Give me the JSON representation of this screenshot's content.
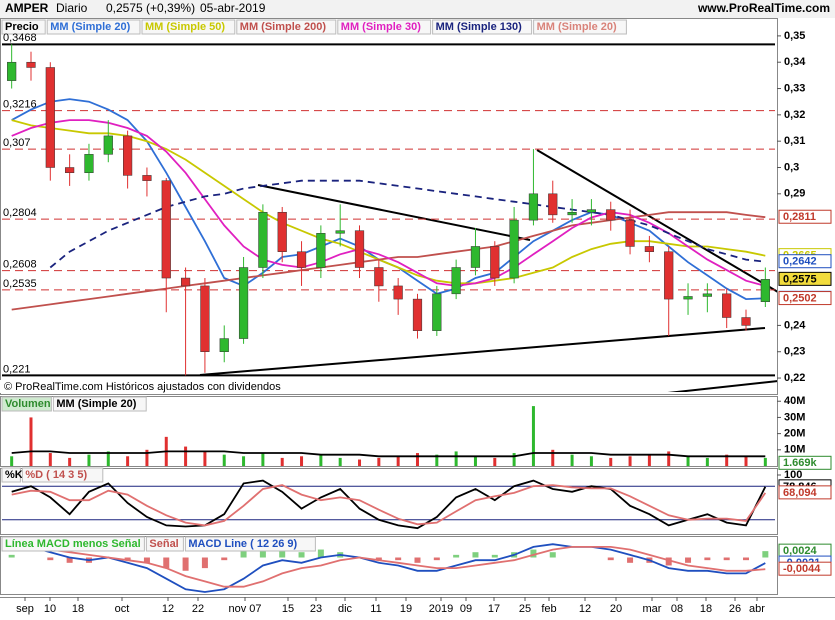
{
  "header": {
    "symbol": "AMPER",
    "period": "Diario",
    "quote": "0,2575 (+0,39%)",
    "date": "05-abr-2019",
    "site": "www.ProRealTime.com"
  },
  "note": "© ProRealTime.com  Históricos ajustados con dividendos",
  "xaxis": {
    "labels": [
      "sep",
      "10",
      "18",
      "oct",
      "12",
      "22",
      "nov 07",
      "15",
      "23",
      "dic",
      "11",
      "19",
      "2019",
      "09",
      "17",
      "25",
      "feb",
      "12",
      "20",
      "mar",
      "08",
      "18",
      "26",
      "abr"
    ]
  },
  "chart_data": [
    {
      "type": "candlestick",
      "up_color": "#2eb82e",
      "down_color": "#e03030",
      "legend": [
        {
          "name": "Precio",
          "color": "#000000"
        },
        {
          "name": "MM (Simple 20)",
          "color": "#2f6fd6"
        },
        {
          "name": "MM (Simple 50)",
          "color": "#c8c800"
        },
        {
          "name": "MM (Simple 200)",
          "color": "#c0504d"
        },
        {
          "name": "MM (Simple 30)",
          "color": "#e020c0"
        },
        {
          "name": "MM (Simple 130)",
          "color": "#1a237e"
        },
        {
          "name": "MM (Simple 20)",
          "color": "#d9837a"
        }
      ],
      "open": [
        0.333,
        0.34,
        0.338,
        0.3,
        0.298,
        0.305,
        0.312,
        0.297,
        0.295,
        0.258,
        0.255,
        0.23,
        0.235,
        0.262,
        0.283,
        0.268,
        0.262,
        0.275,
        0.276,
        0.262,
        0.255,
        0.25,
        0.238,
        0.252,
        0.262,
        0.27,
        0.258,
        0.28,
        0.29,
        0.282,
        0.283,
        0.284,
        0.28,
        0.27,
        0.268,
        0.25,
        0.251,
        0.252,
        0.243,
        0.249
      ],
      "high": [
        0.3468,
        0.344,
        0.34,
        0.305,
        0.309,
        0.318,
        0.314,
        0.3,
        0.296,
        0.262,
        0.258,
        0.24,
        0.266,
        0.286,
        0.285,
        0.272,
        0.278,
        0.286,
        0.278,
        0.265,
        0.258,
        0.252,
        0.255,
        0.265,
        0.277,
        0.272,
        0.285,
        0.307,
        0.295,
        0.288,
        0.288,
        0.287,
        0.284,
        0.274,
        0.27,
        0.256,
        0.256,
        0.254,
        0.246,
        0.262
      ],
      "low": [
        0.33,
        0.333,
        0.295,
        0.293,
        0.295,
        0.302,
        0.292,
        0.289,
        0.245,
        0.221,
        0.222,
        0.226,
        0.233,
        0.258,
        0.264,
        0.255,
        0.258,
        0.27,
        0.258,
        0.249,
        0.244,
        0.235,
        0.236,
        0.25,
        0.259,
        0.255,
        0.256,
        0.278,
        0.279,
        0.279,
        0.278,
        0.276,
        0.267,
        0.264,
        0.236,
        0.244,
        0.245,
        0.239,
        0.238,
        0.247
      ],
      "close": [
        0.34,
        0.338,
        0.3,
        0.298,
        0.305,
        0.312,
        0.297,
        0.295,
        0.258,
        0.255,
        0.23,
        0.235,
        0.262,
        0.283,
        0.268,
        0.262,
        0.275,
        0.276,
        0.262,
        0.255,
        0.25,
        0.238,
        0.252,
        0.262,
        0.27,
        0.258,
        0.28,
        0.29,
        0.282,
        0.283,
        0.284,
        0.28,
        0.27,
        0.268,
        0.25,
        0.251,
        0.252,
        0.243,
        0.24,
        0.2575
      ],
      "lines": [
        {
          "color": "#2f6fd6",
          "dashed": false,
          "values": [
            0.318,
            0.322,
            0.325,
            0.326,
            0.325,
            0.322,
            0.318,
            0.31,
            0.298,
            0.285,
            0.272,
            0.258,
            0.255,
            0.26,
            0.266,
            0.267,
            0.27,
            0.273,
            0.27,
            0.265,
            0.262,
            0.257,
            0.252,
            0.254,
            0.258,
            0.26,
            0.266,
            0.272,
            0.276,
            0.28,
            0.283,
            0.282,
            0.279,
            0.276,
            0.27,
            0.264,
            0.259,
            0.254,
            0.25,
            0.2503
          ]
        },
        {
          "color": "#c8c800",
          "dashed": false,
          "values": [
            0.318,
            0.316,
            0.315,
            0.314,
            0.313,
            0.313,
            0.312,
            0.31,
            0.307,
            0.303,
            0.298,
            0.293,
            0.288,
            0.283,
            0.279,
            0.276,
            0.273,
            0.271,
            0.268,
            0.265,
            0.262,
            0.259,
            0.257,
            0.256,
            0.256,
            0.257,
            0.258,
            0.26,
            0.262,
            0.266,
            0.269,
            0.271,
            0.272,
            0.272,
            0.271,
            0.27,
            0.27,
            0.269,
            0.268,
            0.2665
          ]
        },
        {
          "color": "#c0504d",
          "dashed": false,
          "values": [
            0.246,
            0.247,
            0.248,
            0.249,
            0.25,
            0.251,
            0.252,
            0.253,
            0.254,
            0.255,
            0.256,
            0.257,
            0.258,
            0.259,
            0.26,
            0.261,
            0.262,
            0.263,
            0.264,
            0.265,
            0.266,
            0.266,
            0.267,
            0.268,
            0.269,
            0.27,
            0.272,
            0.274,
            0.276,
            0.278,
            0.279,
            0.28,
            0.281,
            0.282,
            0.283,
            0.283,
            0.283,
            0.283,
            0.282,
            0.2811
          ]
        },
        {
          "color": "#e020c0",
          "dashed": false,
          "values": [
            0.312,
            0.315,
            0.317,
            0.318,
            0.318,
            0.317,
            0.315,
            0.312,
            0.306,
            0.298,
            0.288,
            0.278,
            0.27,
            0.265,
            0.263,
            0.262,
            0.264,
            0.267,
            0.269,
            0.267,
            0.264,
            0.26,
            0.256,
            0.255,
            0.256,
            0.258,
            0.262,
            0.267,
            0.272,
            0.277,
            0.281,
            0.283,
            0.282,
            0.279,
            0.275,
            0.27,
            0.265,
            0.261,
            0.257,
            0.255
          ]
        },
        {
          "color": "#1a237e",
          "dashed": true,
          "values": [
            null,
            null,
            0.262,
            0.268,
            0.272,
            0.276,
            0.279,
            0.282,
            0.285,
            0.287,
            0.289,
            0.29,
            0.292,
            0.293,
            0.294,
            0.295,
            0.295,
            0.295,
            0.295,
            0.294,
            0.293,
            0.292,
            0.291,
            0.29,
            0.289,
            0.288,
            0.287,
            0.286,
            0.285,
            0.284,
            0.283,
            0.282,
            0.28,
            0.278,
            0.275,
            0.272,
            0.269,
            0.267,
            0.265,
            0.2642
          ]
        }
      ],
      "levels": [
        {
          "value": 0.3468,
          "label": "0,3468",
          "style": "solid"
        },
        {
          "value": 0.3216,
          "label": "0,3216",
          "style": "dashed"
        },
        {
          "value": 0.307,
          "label": "0,307",
          "style": "dashed"
        },
        {
          "value": 0.2804,
          "label": "0,2804",
          "style": "dashed"
        },
        {
          "value": 0.2608,
          "label": "0,2608",
          "style": "dashed"
        },
        {
          "value": 0.2535,
          "label": "0,2535",
          "style": "dashed"
        },
        {
          "value": 0.221,
          "label": "0,221",
          "style": "solid"
        }
      ],
      "badges": [
        {
          "value": 0.2811,
          "label": "0,2811",
          "color": "#c0392b"
        },
        {
          "value": 0.2665,
          "label": "0,2665",
          "color": "#c8c800"
        },
        {
          "value": 0.2642,
          "label": "0,2642",
          "color": "#1f4fbf"
        },
        {
          "value": 0.2575,
          "label": "0,2575",
          "color": "#000000",
          "background": "#f2dc3c"
        },
        {
          "value": 0.2503,
          "label": "0,2503",
          "color": "#2f6fd6"
        },
        {
          "value": 0.2502,
          "label": "0,2502",
          "color": "#c0392b"
        }
      ],
      "ylim": [
        0.2147,
        0.353
      ],
      "yticks": [
        {
          "value": 0.22,
          "label": "0,22"
        },
        {
          "value": 0.23,
          "label": "0,23"
        },
        {
          "value": 0.24,
          "label": "0,24"
        },
        {
          "value": 0.29,
          "label": "0,29"
        },
        {
          "value": 0.3,
          "label": "0,3"
        },
        {
          "value": 0.31,
          "label": "0,31"
        },
        {
          "value": 0.32,
          "label": "0,32"
        },
        {
          "value": 0.33,
          "label": "0,33"
        },
        {
          "value": 0.34,
          "label": "0,34"
        },
        {
          "value": 0.35,
          "label": "0,35"
        }
      ]
    },
    {
      "type": "volume",
      "legend": [
        {
          "name": "Volumen",
          "color": "#2e8b2e"
        },
        {
          "name": "MM (Simple 20)",
          "color": "#000000"
        }
      ],
      "values": [
        6,
        30,
        8,
        5,
        7,
        9,
        6,
        10,
        18,
        12,
        9,
        7,
        6,
        8,
        5,
        6,
        7,
        5,
        4,
        5,
        6,
        8,
        7,
        9,
        6,
        5,
        8,
        37,
        10,
        7,
        6,
        5,
        6,
        7,
        9,
        6,
        5,
        7,
        6,
        5
      ],
      "lines": [
        {
          "color": "#000000",
          "dashed": false,
          "values": [
            8,
            9,
            9,
            8,
            8,
            8,
            8,
            8,
            9,
            9,
            9,
            9,
            8,
            8,
            8,
            8,
            7,
            7,
            7,
            6,
            6,
            6,
            6,
            6,
            6,
            6,
            6,
            8,
            8,
            8,
            8,
            7,
            7,
            7,
            7,
            6,
            6,
            6,
            6,
            6
          ]
        }
      ],
      "badges": [
        {
          "value": 1.669,
          "label": "1.669k",
          "color": "#2e8b2e"
        }
      ],
      "ylim": [
        0,
        42
      ],
      "yticks": [
        {
          "value": 10,
          "label": "10M"
        },
        {
          "value": 20,
          "label": "20M"
        },
        {
          "value": 30,
          "label": "30M"
        },
        {
          "value": 40,
          "label": "40M"
        }
      ]
    },
    {
      "type": "line",
      "legend": [
        {
          "name": "%K",
          "color": "#000000"
        },
        {
          "name": "%D ( 14 3 5)",
          "color": "#c0504d"
        }
      ],
      "lines": [
        {
          "color": "#000000",
          "dashed": false,
          "values": [
            70,
            80,
            60,
            30,
            70,
            85,
            50,
            25,
            10,
            8,
            10,
            30,
            85,
            90,
            70,
            40,
            60,
            75,
            40,
            20,
            10,
            5,
            25,
            60,
            75,
            55,
            80,
            90,
            75,
            70,
            80,
            75,
            45,
            30,
            10,
            20,
            30,
            15,
            10,
            78.846
          ]
        },
        {
          "color": "#e07070",
          "dashed": false,
          "values": [
            65,
            72,
            70,
            55,
            55,
            72,
            65,
            45,
            28,
            15,
            10,
            18,
            45,
            75,
            82,
            65,
            55,
            60,
            55,
            38,
            22,
            12,
            15,
            35,
            55,
            62,
            68,
            80,
            82,
            78,
            76,
            76,
            62,
            45,
            28,
            20,
            22,
            22,
            18,
            68.094
          ]
        }
      ],
      "hlines": [
        20,
        80
      ],
      "badges": [
        {
          "value": 78.846,
          "label": "78,846",
          "color": "#000000"
        },
        {
          "value": 68.094,
          "label": "68,094",
          "color": "#c0392b"
        }
      ],
      "ylim": [
        0,
        100
      ],
      "yticks": [
        100
      ]
    },
    {
      "type": "macd",
      "legend": [
        {
          "name": "Línea MACD menos Señal",
          "color": "#2eb82e"
        },
        {
          "name": "Señal",
          "color": "#c0504d"
        },
        {
          "name": "MACD Line ( 12 26 9)",
          "color": "#1f4fbf"
        }
      ],
      "values": [
        0.001,
        0,
        -0.001,
        -0.002,
        -0.002,
        0,
        -0.001,
        -0.002,
        -0.004,
        -0.005,
        -0.004,
        -0.001,
        0.003,
        0.006,
        0.005,
        0.002,
        0.003,
        0.002,
        0,
        -0.001,
        -0.001,
        -0.002,
        -0.001,
        0.001,
        0.002,
        0.001,
        0.002,
        0.003,
        0.002,
        0,
        0,
        -0.001,
        -0.002,
        -0.002,
        -0.003,
        -0.002,
        -0.001,
        -0.001,
        -0.001,
        0.0024
      ],
      "up_color": "#7ed07e",
      "down_color": "#e07070",
      "lines": [
        {
          "color": "#1f4fbf",
          "dashed": false,
          "values": [
            0.004,
            0.004,
            0.002,
            0,
            -0.001,
            0,
            -0.002,
            -0.004,
            -0.008,
            -0.012,
            -0.013,
            -0.012,
            -0.008,
            -0.003,
            -0.001,
            -0.002,
            0,
            0.001,
            0,
            -0.002,
            -0.003,
            -0.005,
            -0.005,
            -0.003,
            -0.001,
            -0.001,
            0.001,
            0.004,
            0.005,
            0.004,
            0.004,
            0.003,
            0.001,
            -0.001,
            -0.004,
            -0.005,
            -0.005,
            -0.006,
            -0.006,
            -0.0021
          ]
        },
        {
          "color": "#e07070",
          "dashed": false,
          "values": [
            0.003,
            0.004,
            0.003,
            0.002,
            0.001,
            0,
            -0.001,
            -0.002,
            -0.004,
            -0.007,
            -0.009,
            -0.011,
            -0.011,
            -0.009,
            -0.006,
            -0.004,
            -0.003,
            -0.001,
            0,
            -0.001,
            -0.002,
            -0.003,
            -0.004,
            -0.004,
            -0.003,
            -0.002,
            -0.001,
            0.001,
            0.003,
            0.004,
            0.004,
            0.004,
            0.003,
            0.001,
            -0.001,
            -0.003,
            -0.004,
            -0.005,
            -0.005,
            -0.0044
          ]
        }
      ],
      "badges": [
        {
          "value": 0.0024,
          "label": "0,0024",
          "color": "#2e8b2e"
        },
        {
          "value": -0.0021,
          "label": "-0,0021",
          "color": "#1f4fbf"
        },
        {
          "value": -0.0044,
          "label": "-0,0044",
          "color": "#c0392b"
        }
      ],
      "ylim": [
        -0.013,
        0.0066
      ],
      "yticks": []
    }
  ]
}
